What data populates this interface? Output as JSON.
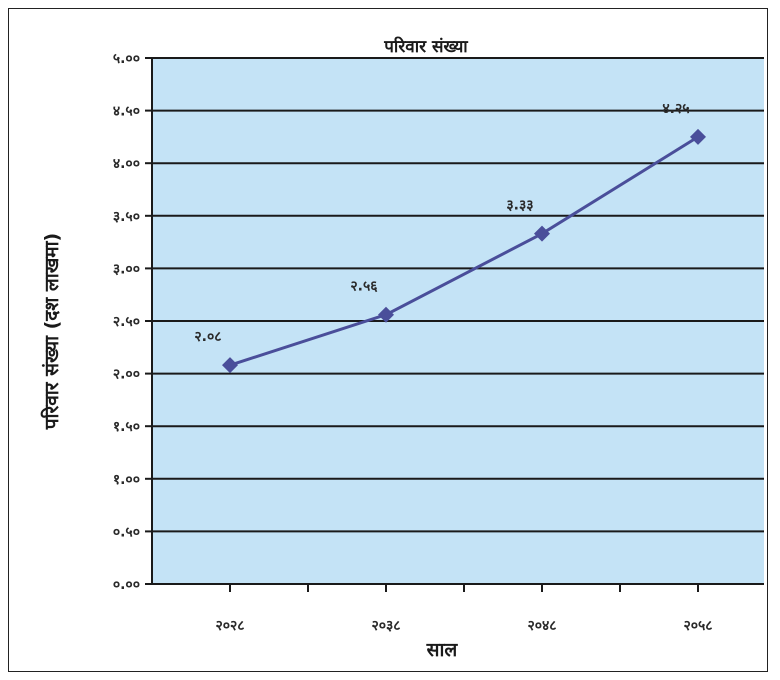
{
  "chart_data": {
    "type": "line",
    "title": "परिवार संख्या",
    "xlabel": "साल",
    "ylabel": "परिवार संख्या (दश लाखमा)",
    "categories": [
      "२०२८",
      "२०३८",
      "२०४८",
      "२०५८"
    ],
    "series": [
      {
        "values": [
          2.08,
          2.56,
          3.33,
          4.25
        ]
      }
    ],
    "data_labels": [
      "२.०८",
      "२.५६",
      "३.३३",
      "४.२५"
    ],
    "ylim": [
      0,
      5
    ],
    "yticks": [
      0,
      0.5,
      1,
      1.5,
      2,
      2.5,
      3,
      3.5,
      4,
      4.5,
      5
    ],
    "ytick_labels": [
      "०.००",
      "०.५०",
      "१.००",
      "१.५०",
      "२.००",
      "२.५०",
      "३.००",
      "३.५०",
      "४.००",
      "४.५०",
      "५.००"
    ],
    "grid": true,
    "legend": "none",
    "colors": {
      "plot_background": "#c4e3f6",
      "line": "#4a4e9a",
      "marker": "#4a4e9a",
      "gridline": "#1a1a1a"
    }
  }
}
